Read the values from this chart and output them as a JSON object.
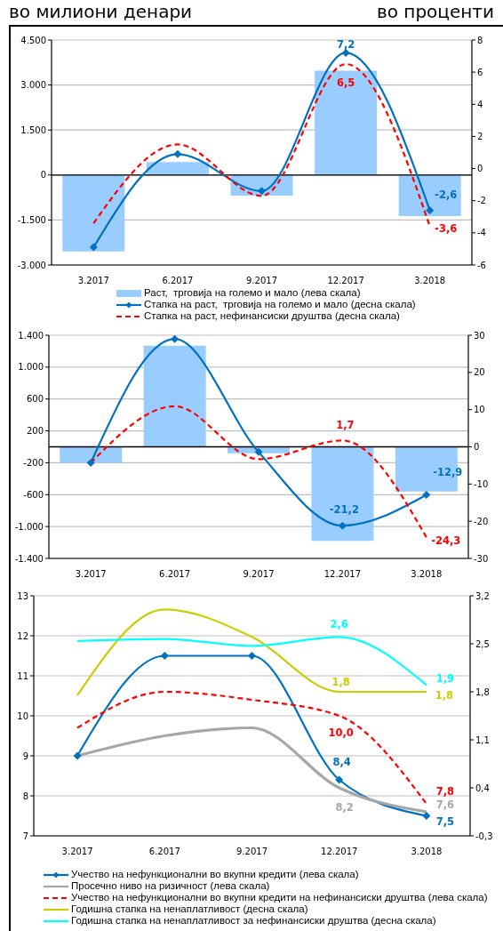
{
  "chart_data": [
    {
      "type": "bar",
      "ylabel": "во милиони денари",
      "y2label": "во проценти",
      "categories": [
        "3.2017",
        "6.2017",
        "9.2017",
        "12.2017",
        "3.2018"
      ],
      "series": [
        {
          "name": "Раст,  трговија на големо и мало (лева скала)",
          "color": "#99ccff",
          "values": [
            -2550,
            430,
            -690,
            3480,
            -1370
          ]
        },
        {
          "name": "Стапка на раст,  трговија на големо и мало (десна скала)",
          "type": "line",
          "axis": "y2",
          "color": "#0070c0",
          "marker": "diamond",
          "values": [
            -4.9,
            0.9,
            -1.4,
            7.2,
            -2.6
          ],
          "value_labels": [
            null,
            null,
            null,
            "7,2",
            "-2,6"
          ]
        },
        {
          "name": "Стапка на раст, нефинансиски друштва (десна скала)",
          "type": "line",
          "axis": "y2",
          "color": "#ff0000",
          "line_style": "dashed",
          "values": [
            -3.4,
            1.5,
            -1.7,
            6.5,
            -3.6
          ],
          "value_labels": [
            null,
            null,
            null,
            "6,5",
            "-3,6"
          ]
        }
      ],
      "ylim": [
        -3000,
        4500
      ],
      "yticks": [
        {
          "value": -3000,
          "label": "-3.000"
        },
        {
          "value": -1500,
          "label": "-1.500"
        },
        0,
        {
          "value": 1500,
          "label": "1.500"
        },
        {
          "value": 3000,
          "label": "3.000"
        },
        {
          "value": 4500,
          "label": "4.500"
        }
      ],
      "y2lim": [
        -6,
        8
      ],
      "y2ticks": [
        -6,
        -4,
        -2,
        0,
        2,
        4,
        6,
        8
      ],
      "ref_lines": [
        {
          "axis": "y",
          "value": 0
        }
      ],
      "grid": "y",
      "legend": "bottom"
    },
    {
      "type": "bar",
      "categories": [
        "3.2017",
        "6.2017",
        "9.2017",
        "12.2017",
        "3.2018"
      ],
      "series": [
        {
          "color": "#99ccff",
          "values": [
            -200,
            1270,
            -80,
            -1180,
            -560
          ]
        },
        {
          "type": "line",
          "axis": "y2",
          "color": "#0070c0",
          "marker": "diamond",
          "values": [
            -4.3,
            29.0,
            -1.4,
            -21.2,
            -12.9
          ],
          "value_labels": [
            null,
            null,
            null,
            "-21,2",
            "-12,9"
          ]
        },
        {
          "type": "line",
          "axis": "y2",
          "color": "#ff0000",
          "line_style": "dashed",
          "values": [
            -4.3,
            10.9,
            -3.3,
            1.7,
            -24.3
          ],
          "value_labels": [
            null,
            null,
            null,
            "1,7",
            "-24,3"
          ]
        }
      ],
      "ylim": [
        -1400,
        1400
      ],
      "yticks": [
        {
          "value": -1400,
          "label": "-1.400"
        },
        {
          "value": -1000,
          "label": "-1.000"
        },
        -600,
        -200,
        200,
        600,
        {
          "value": 1000,
          "label": "1.000"
        },
        {
          "value": 1400,
          "label": "1.400"
        }
      ],
      "y2lim": [
        -30,
        30
      ],
      "y2ticks": [
        -30,
        -20,
        -10,
        0,
        10,
        20,
        30
      ],
      "ref_lines": [
        {
          "axis": "y",
          "value": 0
        }
      ],
      "grid": "y"
    },
    {
      "type": "line",
      "categories": [
        "3.2017",
        "6.2017",
        "9.2017",
        "12.2017",
        "3.2018"
      ],
      "series": [
        {
          "name": "Учество на нефункционални во вкупни кредити (лева скала)",
          "color": "#0070c0",
          "marker": "diamond",
          "values": [
            9.0,
            11.5,
            11.5,
            8.4,
            7.5
          ],
          "value_labels": [
            null,
            null,
            null,
            "8,4",
            "7,5"
          ]
        },
        {
          "name": "Просечно ниво на ризичност (лева скала)",
          "color": "#a6a6a6",
          "values": [
            9.0,
            9.5,
            9.7,
            8.2,
            7.6
          ],
          "value_labels": [
            null,
            null,
            null,
            "8,2",
            "7,6"
          ]
        },
        {
          "name": "Учество на нефункционални во вкупни кредити на нефинансиски друштва (лева скала)",
          "color": "#ff0000",
          "line_style": "dashed",
          "values": [
            9.7,
            10.6,
            10.4,
            10.0,
            7.8
          ],
          "value_labels": [
            null,
            null,
            null,
            "10,0",
            "7,8"
          ]
        },
        {
          "name": "Годишна стапка на ненаплатливост (десна скала)",
          "axis": "y2",
          "color": "#cccc00",
          "values": [
            1.75,
            3.0,
            2.6,
            1.8,
            1.8
          ],
          "value_labels": [
            null,
            null,
            null,
            "1,8",
            "1,8"
          ]
        },
        {
          "name": "Годишна стапка на ненаплатливост за нефинансиски друштва (десна скала)",
          "axis": "y2",
          "color": "#00ffff",
          "values": [
            2.54,
            2.57,
            2.47,
            2.6,
            1.9
          ],
          "value_labels": [
            null,
            null,
            null,
            "2,6",
            "1,9"
          ]
        }
      ],
      "ylim": [
        7,
        13
      ],
      "yticks": [
        7,
        8,
        9,
        10,
        11,
        12,
        13
      ],
      "y2lim": [
        -0.3,
        3.2
      ],
      "y2ticks": [
        {
          "value": -0.3,
          "label": "-0,3"
        },
        {
          "value": 0.4,
          "label": "0,4"
        },
        {
          "value": 1.1,
          "label": "1,1"
        },
        {
          "value": 1.8,
          "label": "1,8"
        },
        {
          "value": 2.5,
          "label": "2,5"
        },
        {
          "value": 3.2,
          "label": "3,2"
        }
      ],
      "grid": "y",
      "legend": "bottom"
    }
  ]
}
